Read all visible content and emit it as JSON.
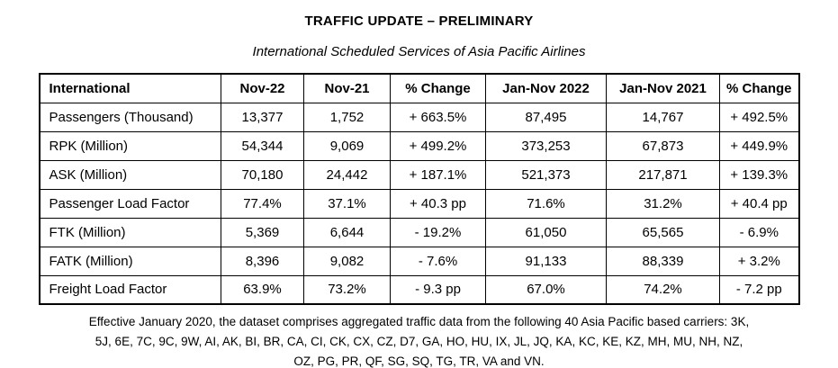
{
  "title": "TRAFFIC UPDATE – PRELIMINARY",
  "subtitle": "International Scheduled Services of Asia Pacific Airlines",
  "chart_data": {
    "type": "table",
    "columns": [
      "International",
      "Nov-22",
      "Nov-21",
      "% Change",
      "Jan-Nov 2022",
      "Jan-Nov 2021",
      "% Change"
    ],
    "rows": [
      [
        "Passengers (Thousand)",
        "13,377",
        "1,752",
        "+ 663.5%",
        "87,495",
        "14,767",
        "+ 492.5%"
      ],
      [
        "RPK (Million)",
        "54,344",
        "9,069",
        "+ 499.2%",
        "373,253",
        "67,873",
        "+ 449.9%"
      ],
      [
        "ASK (Million)",
        "70,180",
        "24,442",
        "+ 187.1%",
        "521,373",
        "217,871",
        "+ 139.3%"
      ],
      [
        "Passenger Load Factor",
        "77.4%",
        "37.1%",
        "+ 40.3 pp",
        "71.6%",
        "31.2%",
        "+ 40.4 pp"
      ],
      [
        "FTK (Million)",
        "5,369",
        "6,644",
        "- 19.2%",
        "61,050",
        "65,565",
        "- 6.9%"
      ],
      [
        "FATK (Million)",
        "8,396",
        "9,082",
        "- 7.6%",
        "91,133",
        "88,339",
        "+ 3.2%"
      ],
      [
        "Freight Load Factor",
        "63.9%",
        "73.2%",
        "- 9.3 pp",
        "67.0%",
        "74.2%",
        "- 7.2 pp"
      ]
    ],
    "title": "TRAFFIC UPDATE – PRELIMINARY",
    "subtitle": "International Scheduled Services of Asia Pacific Airlines"
  },
  "footnote": {
    "lines": [
      "Effective January 2020, the dataset comprises aggregated traffic data from the following 40 Asia Pacific based carriers: 3K,",
      "5J, 6E, 7C, 9C, 9W, AI, AK, BI, BR, CA, CI, CK, CX, CZ, D7, GA, HO, HU, IX, JL, JQ, KA, KC, KE, KZ, MH, MU, NH, NZ,",
      "OZ, PG, PR, QF, SG, SQ, TG, TR, VA and VN."
    ]
  },
  "colors": {
    "text": "#000000",
    "background": "#ffffff",
    "border": "#000000"
  }
}
